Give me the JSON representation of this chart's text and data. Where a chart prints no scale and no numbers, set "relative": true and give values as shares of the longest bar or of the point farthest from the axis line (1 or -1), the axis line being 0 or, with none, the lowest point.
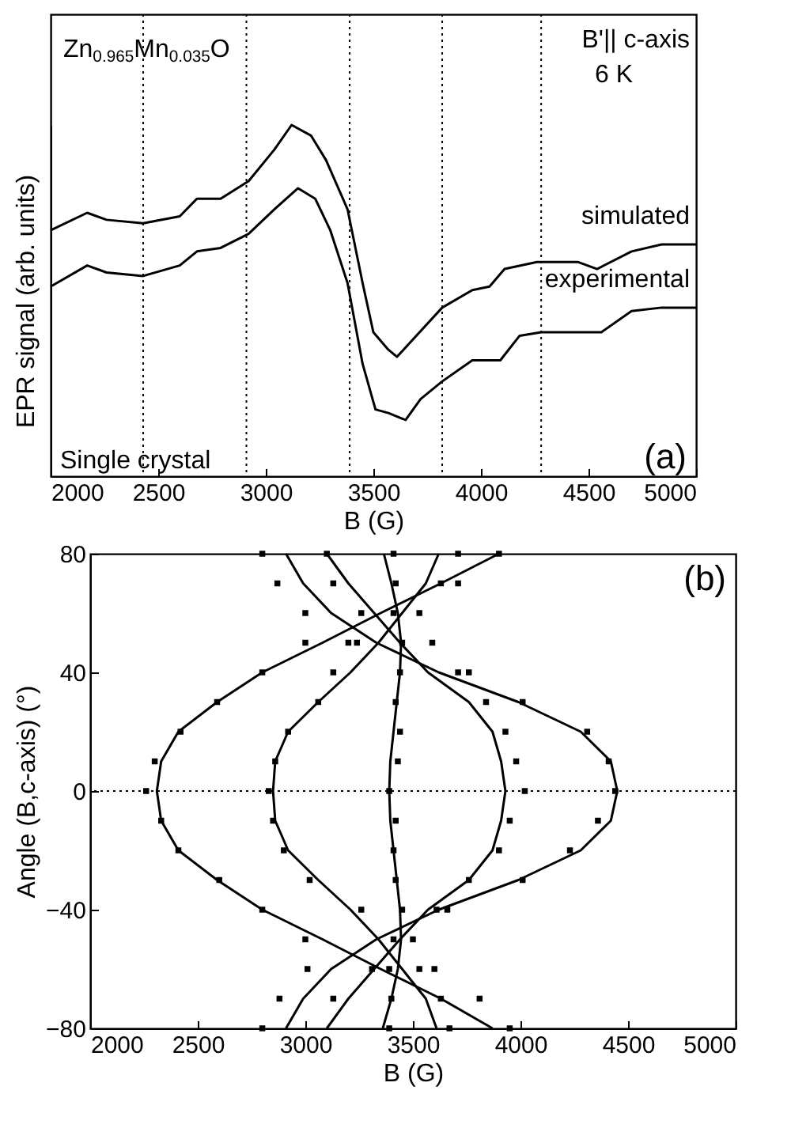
{
  "chart_data": [
    {
      "type": "line",
      "xlabel": "B (G)",
      "ylabel": "EPR signal (arb. units)",
      "relative": true,
      "xlim": [
        2000,
        5000
      ],
      "xticks": [
        2000,
        2500,
        3000,
        3500,
        4000,
        4500,
        5000
      ],
      "series": [
        {
          "name": "simulated",
          "color": "#000000",
          "x": [
            2000,
            2170,
            2260,
            2430,
            2600,
            2680,
            2790,
            2920,
            3040,
            3120,
            3210,
            3280,
            3380,
            3450,
            3500,
            3570,
            3610,
            3670,
            3820,
            3960,
            4040,
            4110,
            4260,
            4450,
            4540,
            4700,
            4840,
            5000
          ],
          "values": [
            0.7,
            0.75,
            0.73,
            0.72,
            0.74,
            0.79,
            0.79,
            0.84,
            0.93,
            1,
            0.97,
            0.9,
            0.76,
            0.55,
            0.41,
            0.36,
            0.34,
            0.38,
            0.48,
            0.53,
            0.54,
            0.59,
            0.61,
            0.61,
            0.59,
            0.64,
            0.66,
            0.66
          ]
        },
        {
          "name": "experimental",
          "color": "#000000",
          "x": [
            2000,
            2170,
            2260,
            2430,
            2600,
            2680,
            2790,
            2920,
            3040,
            3150,
            3230,
            3300,
            3380,
            3450,
            3510,
            3570,
            3650,
            3720,
            3820,
            3960,
            4040,
            4090,
            4180,
            4280,
            4450,
            4560,
            4700,
            4840,
            5000
          ],
          "values": [
            0.54,
            0.6,
            0.58,
            0.57,
            0.6,
            0.64,
            0.65,
            0.69,
            0.76,
            0.82,
            0.79,
            0.7,
            0.55,
            0.32,
            0.19,
            0.18,
            0.16,
            0.22,
            0.27,
            0.33,
            0.33,
            0.33,
            0.4,
            0.41,
            0.41,
            0.41,
            0.47,
            0.48,
            0.48
          ]
        }
      ],
      "ref_lines": [
        {
          "axis": "x",
          "value": 2430,
          "line_style": "dotted"
        },
        {
          "axis": "x",
          "value": 2910,
          "line_style": "dotted"
        },
        {
          "axis": "x",
          "value": 3390,
          "line_style": "dotted"
        },
        {
          "axis": "x",
          "value": 3820,
          "line_style": "dotted"
        },
        {
          "axis": "x",
          "value": 4280,
          "line_style": "dotted"
        }
      ],
      "annotations": [
        "Zn$_{0.965}$Mn$_{0.035}$O",
        "B'|| c-axis",
        "6 K",
        "Single crystal",
        "(a)"
      ]
    },
    {
      "type": "scatter",
      "xlabel": "B (G)",
      "ylabel": "Angle (B,c-axis)  (°)",
      "xlim": [
        2000,
        5000
      ],
      "xticks": [
        2000,
        2500,
        3000,
        3500,
        4000,
        4500,
        5000
      ],
      "ylim": [
        -80,
        80
      ],
      "yticks": [
        -80,
        -40,
        0,
        40,
        80
      ],
      "series": [
        {
          "marker": "square",
          "color": "#000000",
          "x": [
            2800,
            3100,
            3410,
            3710,
            3900,
            2870,
            3130,
            3420,
            3630,
            3710,
            3000,
            3260,
            3410,
            3530,
            3000,
            3200,
            3240,
            3450,
            3590,
            2800,
            3130,
            3440,
            3710,
            3760,
            2590,
            3060,
            3420,
            3840,
            4010,
            2420,
            2920,
            3440,
            3930,
            4310,
            2300,
            2860,
            3430,
            3980,
            4410,
            2260,
            2830,
            3390,
            4020,
            4440,
            2330,
            2850,
            3420,
            3950,
            4360,
            2410,
            2900,
            3410,
            3900,
            4230,
            2600,
            3020,
            3420,
            3760,
            4010,
            2800,
            3260,
            3450,
            3610,
            3660,
            3000,
            3410,
            3500,
            3010,
            3310,
            3390,
            3530,
            3600,
            2880,
            3130,
            3400,
            3630,
            3810,
            2800,
            3390,
            3670,
            3950
          ],
          "values": [
            80,
            80,
            80,
            80,
            80,
            70,
            70,
            70,
            70,
            70,
            60,
            60,
            60,
            60,
            50,
            50,
            50,
            50,
            50,
            40,
            40,
            40,
            40,
            40,
            30,
            30,
            30,
            30,
            30,
            20,
            20,
            20,
            20,
            20,
            10,
            10,
            10,
            10,
            10,
            0,
            0,
            0,
            0,
            0,
            -10,
            -10,
            -10,
            -10,
            -10,
            -20,
            -20,
            -20,
            -20,
            -20,
            -30,
            -30,
            -30,
            -30,
            -30,
            -40,
            -40,
            -40,
            -40,
            -40,
            -50,
            -50,
            -50,
            -60,
            -60,
            -60,
            -60,
            -60,
            -70,
            -70,
            -70,
            -70,
            -70,
            -80,
            -80,
            -80,
            -80
          ]
        },
        {
          "type": "line",
          "color": "#000000",
          "x": [
            3870,
            3630,
            3350,
            3080,
            2800,
            2590,
            2410,
            2330,
            2310,
            2330,
            2410,
            2590,
            2800,
            3080,
            3350,
            3630,
            3900
          ],
          "values": [
            -80,
            -70,
            -60,
            -50,
            -40,
            -30,
            -20,
            -10,
            0,
            10,
            20,
            30,
            40,
            50,
            60,
            70,
            80
          ]
        },
        {
          "type": "line",
          "color": "#000000",
          "x": [
            3610,
            3560,
            3450,
            3340,
            3210,
            3060,
            2920,
            2860,
            2850,
            2860,
            2920,
            3060,
            3210,
            3340,
            3450,
            3560,
            3620
          ],
          "values": [
            -80,
            -70,
            -60,
            -50,
            -40,
            -30,
            -20,
            -10,
            0,
            10,
            20,
            30,
            40,
            50,
            60,
            70,
            80
          ]
        },
        {
          "type": "line",
          "color": "#000000",
          "x": [
            3360,
            3400,
            3430,
            3445,
            3440,
            3425,
            3410,
            3395,
            3390,
            3395,
            3410,
            3425,
            3440,
            3445,
            3430,
            3400,
            3365
          ],
          "values": [
            -80,
            -70,
            -60,
            -50,
            -40,
            -30,
            -20,
            -10,
            0,
            10,
            20,
            30,
            40,
            50,
            60,
            70,
            80
          ]
        },
        {
          "type": "line",
          "color": "#000000",
          "x": [
            3100,
            3200,
            3320,
            3440,
            3570,
            3760,
            3870,
            3910,
            3930,
            3910,
            3870,
            3760,
            3570,
            3440,
            3320,
            3200,
            3100
          ],
          "values": [
            -80,
            -70,
            -60,
            -50,
            -40,
            -30,
            -20,
            -10,
            0,
            10,
            20,
            30,
            40,
            50,
            60,
            70,
            80
          ]
        },
        {
          "type": "line",
          "color": "#000000",
          "x": [
            2910,
            2990,
            3120,
            3330,
            3620,
            3990,
            4280,
            4420,
            4450,
            4420,
            4280,
            3990,
            3620,
            3330,
            3120,
            2990,
            2910
          ],
          "values": [
            -80,
            -70,
            -60,
            -50,
            -40,
            -30,
            -20,
            -10,
            0,
            10,
            20,
            30,
            40,
            50,
            60,
            70,
            80
          ]
        }
      ],
      "ref_lines": [
        {
          "axis": "y",
          "value": 0,
          "line_style": "dotted"
        }
      ],
      "annotations": [
        "(b)"
      ]
    }
  ]
}
